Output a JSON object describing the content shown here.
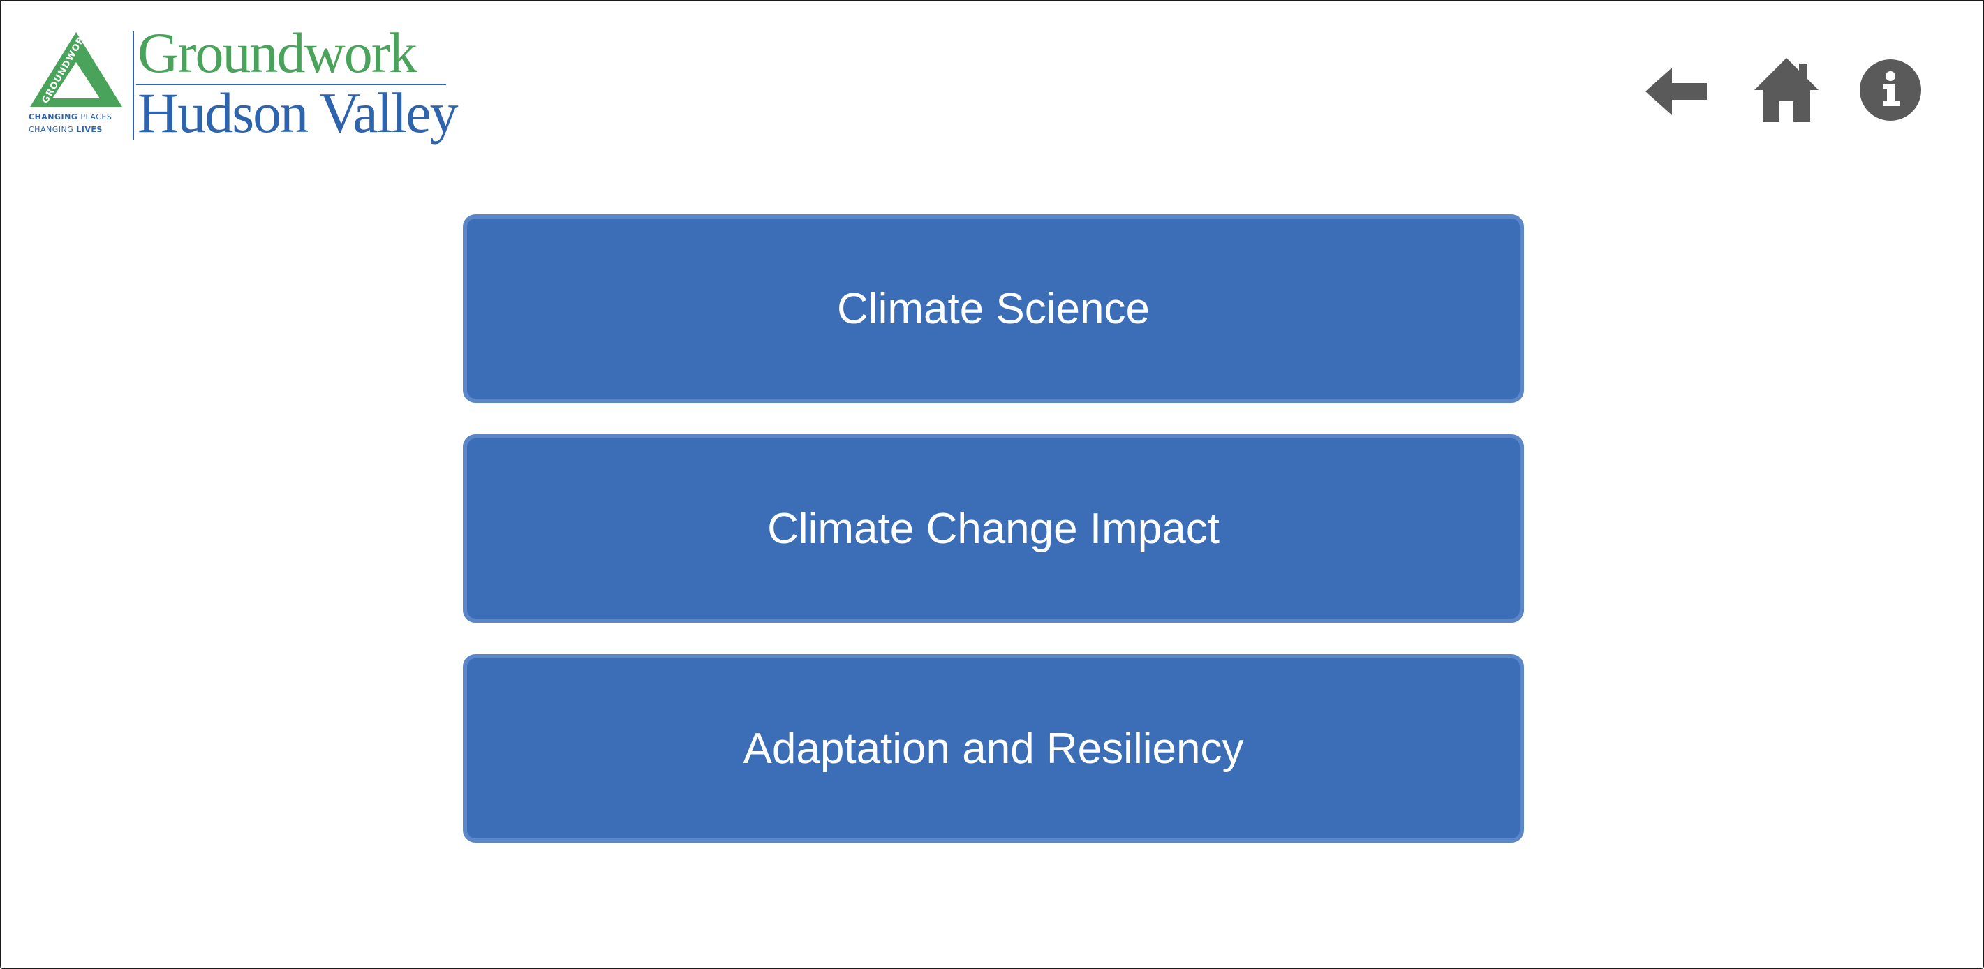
{
  "logo": {
    "name_line1": "Groundwork",
    "name_line2": "Hudson Valley",
    "mark_text": "GROUNDWORK",
    "tagline_line1_a": "CHANGING",
    "tagline_line1_b": "PLACES",
    "tagline_line2_a": "CHANGING",
    "tagline_line2_b": "LIVES",
    "colors": {
      "green": "#4aa35a",
      "blue": "#2e63ad"
    }
  },
  "nav": {
    "back_icon": "arrow-left-icon",
    "home_icon": "home-icon",
    "info_icon": "info-circle-icon",
    "icon_color": "#5a5a5a"
  },
  "menu": {
    "items": [
      {
        "label": "Climate Science"
      },
      {
        "label": "Climate Change Impact"
      },
      {
        "label": "Adaptation and Resiliency"
      }
    ],
    "button_color": "#3c6eb7",
    "button_border_color": "#5b87c9"
  }
}
